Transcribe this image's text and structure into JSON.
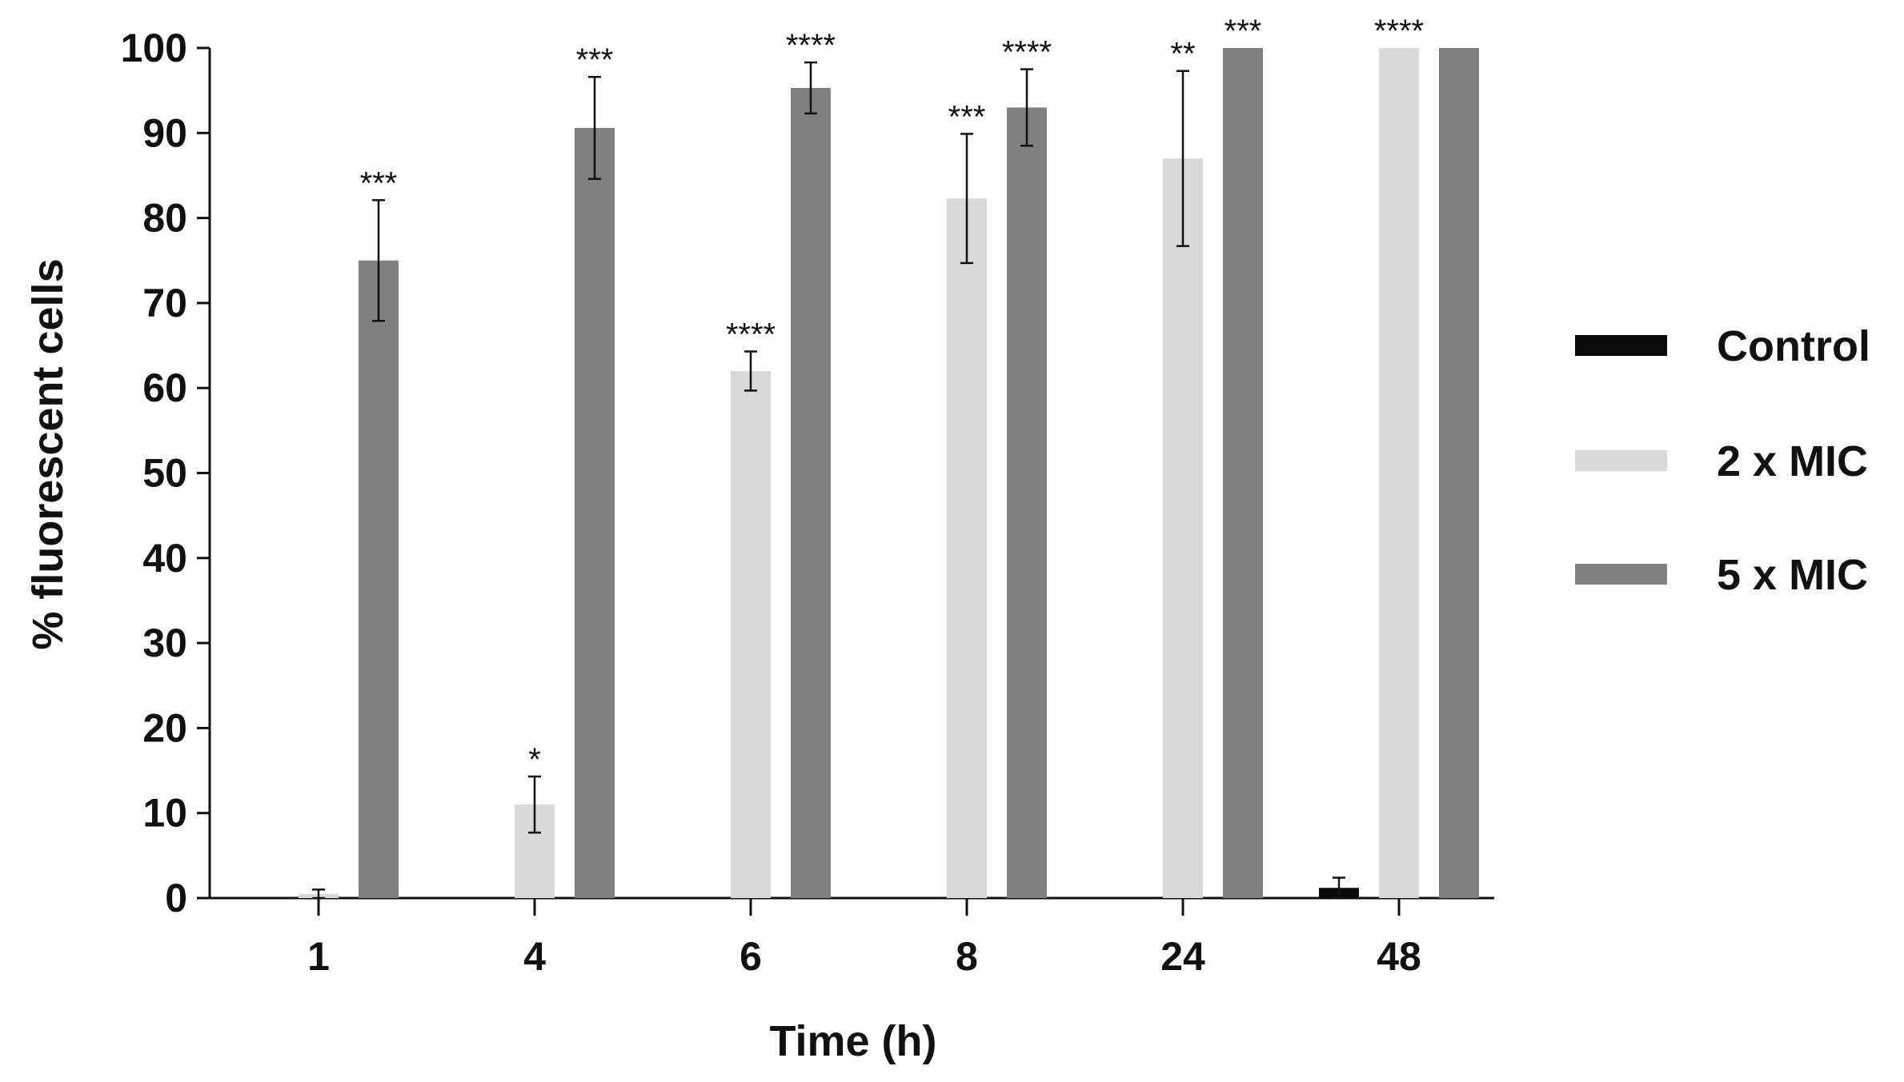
{
  "chart_data": {
    "type": "bar",
    "xlabel": "Time (h)",
    "ylabel": "% fluorescent cells",
    "ylim": [
      0,
      100
    ],
    "yticks": [
      "0",
      "10",
      "20",
      "30",
      "40",
      "50",
      "60",
      "70",
      "80",
      "90",
      "100"
    ],
    "categories": [
      "1",
      "4",
      "6",
      "8",
      "24",
      "48"
    ],
    "grid": false,
    "legend_position": "right",
    "series": [
      {
        "name": "Control",
        "color": "#0a0a0a",
        "values": [
          0,
          0,
          0,
          0,
          0,
          1.2
        ],
        "errors": [
          0,
          0,
          0,
          0,
          0,
          1.2
        ],
        "significance": [
          "",
          "",
          "",
          "",
          "",
          ""
        ]
      },
      {
        "name": "2 x MIC",
        "color": "#d9d9d9",
        "values": [
          0.5,
          11,
          62,
          82.3,
          87,
          100
        ],
        "errors": [
          0.5,
          3.3,
          2.3,
          7.6,
          10.3,
          0
        ],
        "significance": [
          "",
          "*",
          "****",
          "***",
          "**",
          "****"
        ]
      },
      {
        "name": "5 x MIC",
        "color": "#808080",
        "values": [
          75,
          90.6,
          95.3,
          93,
          100,
          100
        ],
        "errors": [
          7.1,
          6.0,
          3.0,
          4.5,
          0,
          0
        ],
        "significance": [
          "***",
          "***",
          "****",
          "****",
          "***",
          ""
        ]
      }
    ]
  }
}
